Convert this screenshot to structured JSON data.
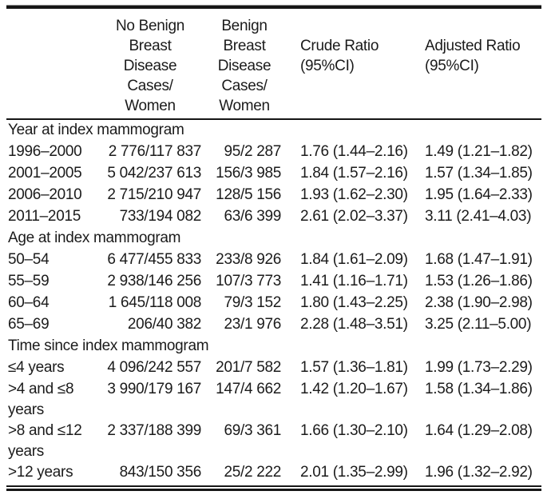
{
  "table": {
    "header": {
      "col_row_label": "",
      "col_no_bbd": [
        "No Benign",
        "Breast",
        "Disease",
        "Cases/",
        "Women"
      ],
      "col_bbd": [
        "Benign",
        "Breast",
        "Disease",
        "Cases/",
        "Women"
      ],
      "col_crude": [
        "Crude Ratio",
        "(95%CI)"
      ],
      "col_adjusted": [
        "Adjusted Ratio",
        "(95%CI)"
      ]
    },
    "sections": [
      {
        "title": "Year at index mammogram",
        "rows": [
          {
            "label": "1996–2000",
            "cells": [
              "2 776/117 837",
              "95/2 287",
              "1.76 (1.44–2.16)",
              "1.49 (1.21–1.82)"
            ]
          },
          {
            "label": "2001–2005",
            "cells": [
              "5 042/237 613",
              "156/3 985",
              "1.84 (1.57–2.16)",
              "1.57 (1.34–1.85)"
            ]
          },
          {
            "label": "2006–2010",
            "cells": [
              "2 715/210 947",
              "128/5 156",
              "1.93 (1.62–2.30)",
              "1.95 (1.64–2.33)"
            ]
          },
          {
            "label": "2011–2015",
            "cells": [
              "733/194 082",
              "63/6 399",
              "2.61 (2.02–3.37)",
              "3.11 (2.41–4.03)"
            ]
          }
        ]
      },
      {
        "title": "Age at index mammogram",
        "rows": [
          {
            "label": "50–54",
            "cells": [
              "6 477/455 833",
              "233/8 926",
              "1.84 (1.61–2.09)",
              "1.68 (1.47–1.91)"
            ]
          },
          {
            "label": "55–59",
            "cells": [
              "2 938/146 256",
              "107/3 773",
              "1.41 (1.16–1.71)",
              "1.53 (1.26–1.86)"
            ]
          },
          {
            "label": "60–64",
            "cells": [
              "1 645/118 008",
              "79/3 152",
              "1.80 (1.43–2.25)",
              "2.38 (1.90–2.98)"
            ]
          },
          {
            "label": "65–69",
            "cells": [
              "206/40 382",
              "23/1 976",
              "2.28 (1.48–3.51)",
              "3.25 (2.11–5.00)"
            ]
          }
        ]
      },
      {
        "title": "Time since index mammogram",
        "rows": [
          {
            "label": "≤4 years",
            "cells": [
              "4 096/242 557",
              "201/7 582",
              "1.57 (1.36–1.81)",
              "1.99 (1.73–2.29)"
            ]
          },
          {
            "label": ">4 and ≤8 years",
            "cells": [
              "3 990/179 167",
              "147/4 662",
              "1.42 (1.20–1.67)",
              "1.58 (1.34–1.86)"
            ]
          },
          {
            "label": ">8 and ≤12 years",
            "cells": [
              "2 337/188 399",
              "69/3 361",
              "1.66 (1.30–2.10)",
              "1.64 (1.29–2.08)"
            ]
          },
          {
            "label": ">12 years",
            "cells": [
              "843/150 356",
              "25/2 222",
              "2.01 (1.35–2.99)",
              "1.96 (1.32–2.92)"
            ]
          }
        ]
      }
    ]
  }
}
